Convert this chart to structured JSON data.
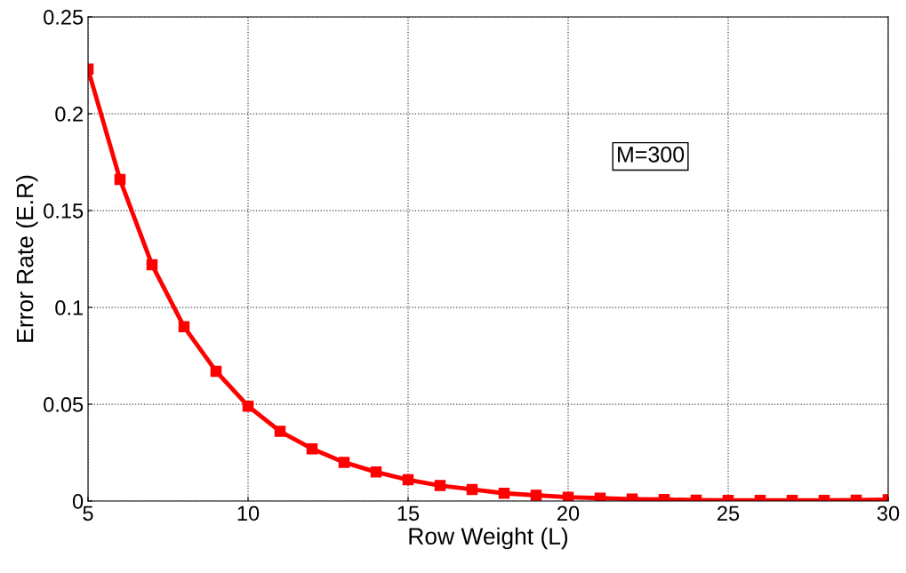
{
  "chart_data": {
    "type": "line",
    "xlabel": "Row Weight (L)",
    "ylabel": "Error Rate (E.R)",
    "annotations": [
      "M=300"
    ],
    "x": [
      5,
      6,
      7,
      8,
      9,
      10,
      11,
      12,
      13,
      14,
      15,
      16,
      17,
      18,
      19,
      20,
      21,
      22,
      23,
      24,
      25,
      26,
      27,
      28,
      29,
      30
    ],
    "series": [
      {
        "color": "#ff0000",
        "values": [
          0.223,
          0.166,
          0.122,
          0.09,
          0.067,
          0.049,
          0.036,
          0.027,
          0.02,
          0.015,
          0.011,
          0.008,
          0.006,
          0.004,
          0.003,
          0.002,
          0.0015,
          0.001,
          0.0008,
          0.0005,
          0.0004,
          0.0004,
          0.0004,
          0.0004,
          0.0005,
          0.0007
        ]
      }
    ],
    "xlim": [
      5,
      30
    ],
    "ylim": [
      0,
      0.25
    ],
    "xticks": [
      5,
      10,
      15,
      20,
      25,
      30
    ],
    "yticks": [
      0,
      0.05,
      0.1,
      0.15,
      0.2,
      0.25
    ],
    "grid": true,
    "marker": "square",
    "line_style": "solid"
  }
}
